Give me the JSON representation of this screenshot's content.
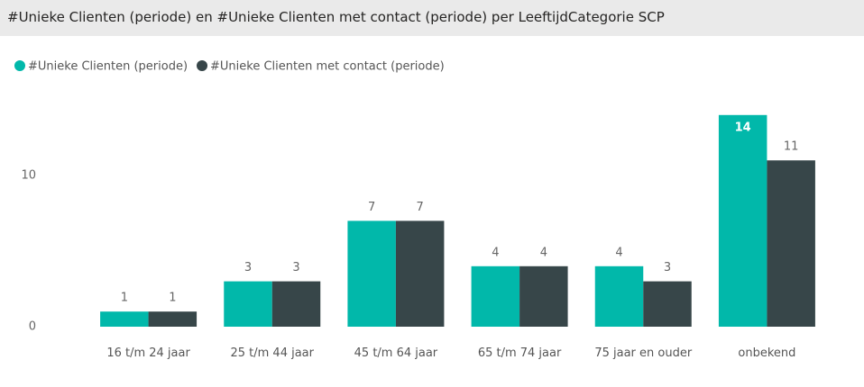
{
  "chart_data": {
    "type": "bar",
    "title": "#Unieke Clienten (periode) en #Unieke Clienten met contact (periode) per LeeftijdCategorie SCP",
    "categories": [
      "16 t/m 24 jaar",
      "25 t/m 44 jaar",
      "45 t/m 64 jaar",
      "65 t/m 74 jaar",
      "75 jaar en ouder",
      "onbekend"
    ],
    "series": [
      {
        "name": "#Unieke Clienten (periode)",
        "color": "#01b8aa",
        "values": [
          1,
          3,
          7,
          4,
          4,
          14
        ]
      },
      {
        "name": "#Unieke Clienten met contact (periode)",
        "color": "#374649",
        "values": [
          1,
          3,
          7,
          4,
          3,
          11
        ]
      }
    ],
    "ylim": [
      0,
      15
    ],
    "yticks": [
      0,
      10
    ],
    "grid": false,
    "legend": "top-left"
  }
}
